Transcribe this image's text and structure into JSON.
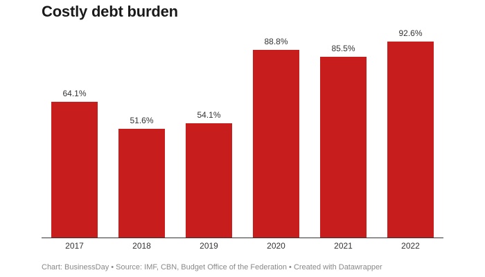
{
  "title": "Costly debt burden",
  "footer": "Chart: BusinessDay • Source: IMF, CBN, Budget Office of the Federation • Created with Datawrapper",
  "colors": {
    "bar": "#c71e1d",
    "axis": "#333333",
    "footer": "#888888"
  },
  "chart_data": {
    "type": "bar",
    "title": "Costly debt burden",
    "categories": [
      "2017",
      "2018",
      "2019",
      "2020",
      "2021",
      "2022"
    ],
    "values": [
      64.1,
      51.6,
      54.1,
      88.8,
      85.5,
      92.6
    ],
    "labels": [
      "64.1%",
      "51.6%",
      "54.1%",
      "88.8%",
      "85.5%",
      "92.6%"
    ],
    "unit": "%",
    "xlabel": "",
    "ylabel": "",
    "ylim": [
      0,
      100
    ],
    "grid": false,
    "legend": null,
    "source": "IMF, CBN, Budget Office of the Federation"
  }
}
